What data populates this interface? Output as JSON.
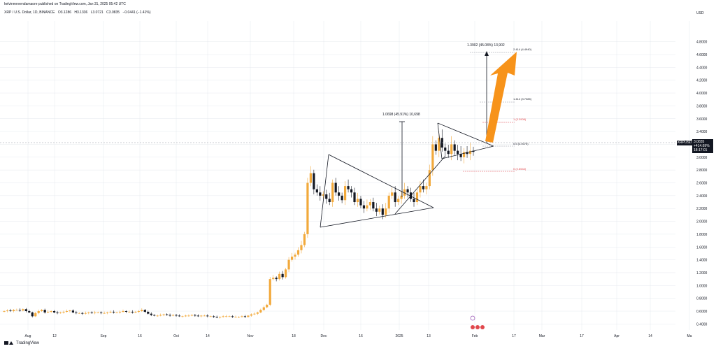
{
  "header": {
    "published": "kelvinmnvendamaore published on TradingView.com, Jan 31, 2025 05:42 UTC"
  },
  "symbol_bar": {
    "name": "XRP / U.S. Dollar, 1D, BINANCE",
    "open": "O3.1286",
    "high": "H3.1336",
    "low": "L3.0721",
    "close": "C3.0835",
    "change": "−0.0441 (−1.41%)"
  },
  "price_axis": {
    "currency": "USD",
    "ticks": [
      "4.8000",
      "4.6000",
      "4.4000",
      "4.2000",
      "4.0000",
      "3.8000",
      "3.6000",
      "3.4000",
      "3.2000",
      "3.0000",
      "2.8000",
      "2.6000",
      "2.4000",
      "2.2000",
      "2.0000",
      "1.8000",
      "1.6000",
      "1.4000",
      "1.2000",
      "1.0000",
      "0.8000",
      "0.6000",
      "0.4000"
    ]
  },
  "time_axis": {
    "ticks": [
      "Aug",
      "12",
      "Sep",
      "16",
      "Oct",
      "14",
      "Nov",
      "18",
      "Dec",
      "16",
      "2025",
      "13",
      "Feb",
      "17",
      "Mar",
      "17",
      "Apr",
      "14",
      "Ma"
    ]
  },
  "last_price": {
    "symbol": "XRPUSD",
    "price": "3.0835",
    "change_pct": "+414.69%",
    "countdown": "18:17:01"
  },
  "annotations": {
    "measure1": "1.0698 (45.91%) 10,698",
    "measure2": "1.3902 (45.08%) 13,902",
    "fib_2414": "2.414 (4.4940)",
    "fib_1414": "1.414 (3.7085)",
    "fib_1": "1 (3.3908)",
    "fib_05": "0.5 (3.0075)",
    "fib_0": "0 (2.6544)"
  },
  "colors": {
    "up": "#f2a93b",
    "down": "#131722",
    "arrow": "#f7931a",
    "fib_red": "#e0474c",
    "grid": "#e0e3eb",
    "axis_text": "#131722",
    "dashed": "#9598a1"
  },
  "footer": {
    "brand": "TradingView"
  },
  "chart_data": {
    "type": "candlestick",
    "title": "XRP / U.S. Dollar, 1D, BINANCE",
    "ylabel": "USD",
    "ylim": [
      0.3,
      4.9
    ],
    "x_ticks": [
      "Aug",
      "12",
      "Sep",
      "16",
      "Oct",
      "14",
      "Nov",
      "18",
      "Dec",
      "16",
      "2025",
      "13",
      "Feb",
      "17",
      "Mar",
      "17",
      "Apr",
      "14",
      "Ma"
    ],
    "closes": [
      0.6,
      0.61,
      0.6,
      0.62,
      0.62,
      0.61,
      0.63,
      0.6,
      0.58,
      0.52,
      0.57,
      0.6,
      0.62,
      0.58,
      0.59,
      0.6,
      0.58,
      0.57,
      0.58,
      0.59,
      0.6,
      0.61,
      0.58,
      0.57,
      0.57,
      0.56,
      0.57,
      0.58,
      0.57,
      0.58,
      0.58,
      0.57,
      0.57,
      0.58,
      0.59,
      0.58,
      0.58,
      0.59,
      0.6,
      0.59,
      0.59,
      0.58,
      0.59,
      0.6,
      0.62,
      0.59,
      0.56,
      0.54,
      0.53,
      0.53,
      0.54,
      0.55,
      0.54,
      0.53,
      0.54,
      0.53,
      0.52,
      0.52,
      0.53,
      0.53,
      0.54,
      0.53,
      0.52,
      0.53,
      0.53,
      0.52,
      0.52,
      0.51,
      0.5,
      0.51,
      0.52,
      0.52,
      0.52,
      0.51,
      0.51,
      0.51,
      0.52,
      0.51,
      0.53,
      0.55,
      0.56,
      0.58,
      0.62,
      0.66,
      0.7,
      1.1,
      1.12,
      1.1,
      1.18,
      1.13,
      1.25,
      1.4,
      1.45,
      1.48,
      1.55,
      1.63,
      1.8,
      2.6,
      2.75,
      2.5,
      2.45,
      2.4,
      2.42,
      2.35,
      2.3,
      2.6,
      2.45,
      2.4,
      2.33,
      2.55,
      2.5,
      2.45,
      2.3,
      2.35,
      2.25,
      2.2,
      2.25,
      2.3,
      2.2,
      2.15,
      2.2,
      2.1,
      2.2,
      2.4,
      2.45,
      2.3,
      2.35,
      2.4,
      2.5,
      2.45,
      2.35,
      2.3,
      2.45,
      2.55,
      2.5,
      2.55,
      2.8,
      3.2,
      3.1,
      3.3,
      3.15,
      3.1,
      3.05,
      3.2,
      3.1,
      3.05,
      3.0,
      3.08,
      3.05,
      3.1,
      3.0835
    ],
    "trendlines": [
      "symmetrical triangle Dec–Jan",
      "symmetrical triangle Jan–Feb"
    ],
    "measurements": [
      {
        "label": "1.0698 (45.91%) 10,698",
        "from": 2.33,
        "to": 3.4
      },
      {
        "label": "1.3902 (45.08%) 13,902",
        "from": 3.08,
        "to": 4.47
      }
    ],
    "fibonacci": [
      {
        "level": "2.414",
        "price": 4.494
      },
      {
        "level": "1.414",
        "price": 3.7085
      },
      {
        "level": "1",
        "price": 3.3908
      },
      {
        "level": "0.5",
        "price": 3.0075
      },
      {
        "level": "0",
        "price": 2.6544
      }
    ],
    "last_price": 3.0835,
    "grid": true
  }
}
